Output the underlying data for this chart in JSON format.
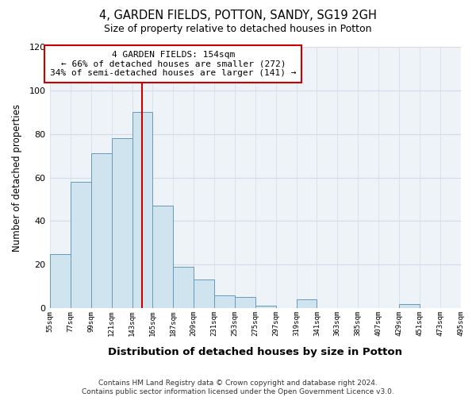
{
  "title": "4, GARDEN FIELDS, POTTON, SANDY, SG19 2GH",
  "subtitle": "Size of property relative to detached houses in Potton",
  "xlabel": "Distribution of detached houses by size in Potton",
  "ylabel": "Number of detached properties",
  "bin_edges": [
    55,
    77,
    99,
    121,
    143,
    165,
    187,
    209,
    231,
    253,
    275,
    297,
    319,
    341,
    363,
    385,
    407,
    429,
    451,
    473,
    495
  ],
  "bin_counts": [
    25,
    58,
    71,
    78,
    90,
    47,
    19,
    13,
    6,
    5,
    1,
    0,
    4,
    0,
    0,
    0,
    0,
    2,
    0,
    0
  ],
  "bar_facecolor": "#d0e4f0",
  "bar_edgecolor": "#6699bb",
  "grid_color": "#d0dde8",
  "marker_value": 154,
  "marker_color": "#cc0000",
  "annotation_lines": [
    "4 GARDEN FIELDS: 154sqm",
    "← 66% of detached houses are smaller (272)",
    "34% of semi-detached houses are larger (141) →"
  ],
  "annotation_box_color": "#cc0000",
  "ylim": [
    0,
    120
  ],
  "yticks": [
    0,
    20,
    40,
    60,
    80,
    100,
    120
  ],
  "tick_labels": [
    "55sqm",
    "77sqm",
    "99sqm",
    "121sqm",
    "143sqm",
    "165sqm",
    "187sqm",
    "209sqm",
    "231sqm",
    "253sqm",
    "275sqm",
    "297sqm",
    "319sqm",
    "341sqm",
    "363sqm",
    "385sqm",
    "407sqm",
    "429sqm",
    "451sqm",
    "473sqm",
    "495sqm"
  ],
  "footer_lines": [
    "Contains HM Land Registry data © Crown copyright and database right 2024.",
    "Contains public sector information licensed under the Open Government Licence v3.0."
  ],
  "background_color": "#ffffff",
  "plot_bg_color": "#eef3f8"
}
